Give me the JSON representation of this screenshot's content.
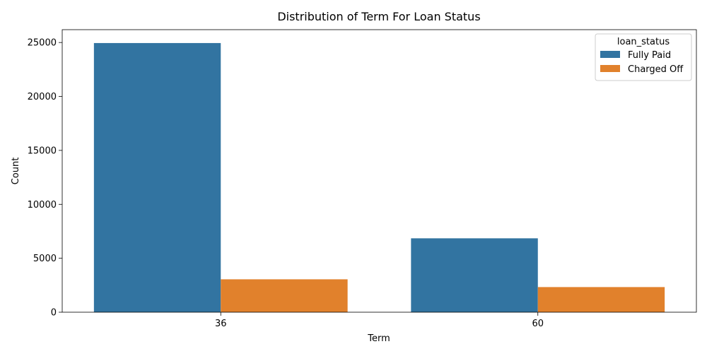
{
  "chart_data": {
    "type": "bar",
    "title": "Distribution of Term For Loan Status",
    "xlabel": "Term",
    "ylabel": "Count",
    "categories": [
      "36",
      "60"
    ],
    "series": [
      {
        "name": "Fully Paid",
        "values": [
          24950,
          6850
        ],
        "color": "#3274a1"
      },
      {
        "name": "Charged Off",
        "values": [
          3050,
          2330
        ],
        "color": "#e1812c"
      }
    ],
    "ylim": [
      0,
      26190
    ],
    "yticks": [
      0,
      5000,
      10000,
      15000,
      20000,
      25000
    ],
    "grid": false,
    "legend": {
      "title": "loan_status",
      "placement": "top-right"
    }
  }
}
